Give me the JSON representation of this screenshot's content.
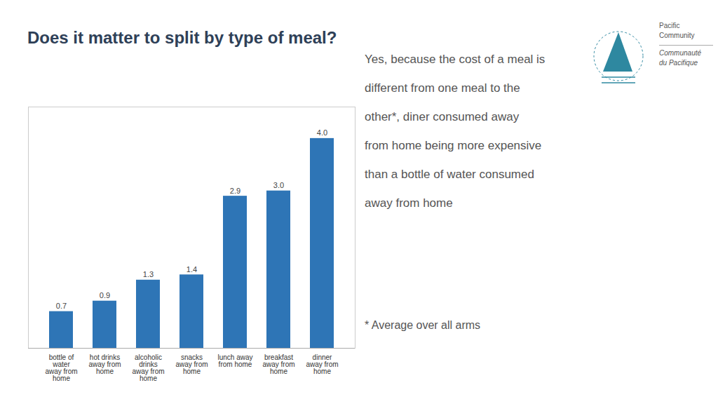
{
  "chart_data": {
    "type": "bar",
    "title": "Does it matter to split by type of meal?",
    "categories": [
      "bottle of\nwater\naway from\nhome",
      "hot drinks\naway from\nhome",
      "alcoholic\ndrinks\naway from\nhome",
      "snacks\naway from\nhome",
      "lunch away\nfrom home",
      "breakfast\naway from\nhome",
      "dinner\naway from\nhome"
    ],
    "values": [
      0.7,
      0.9,
      1.3,
      1.4,
      2.9,
      3.0,
      4.0
    ],
    "value_labels": [
      "0.7",
      "0.9",
      "1.3",
      "1.4",
      "2.9",
      "3.0",
      "4.0"
    ],
    "color": "#2E75B6",
    "ylim": [
      0,
      4.6
    ],
    "grid": false,
    "data_labels": true,
    "tick_labels": "x",
    "annotations": [
      [
        "Yes, because the cost of a meal is",
        "different from one meal to the",
        "other*, diner consumed away",
        "from home being more expensive",
        "than a bottle of water consumed",
        "away from home"
      ],
      [
        "* Average over all arms"
      ],
      [
        "Pacific",
        "Community",
        "Communauté",
        "du Pacifique"
      ]
    ]
  }
}
